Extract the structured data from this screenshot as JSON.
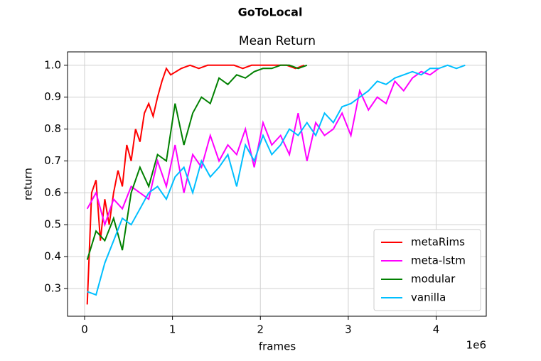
{
  "chart_data": {
    "type": "line",
    "title": "GoToLocal",
    "subtitle": "Mean Return",
    "x_label": "frames",
    "y_label": "return",
    "x_offset_label": "1e6",
    "xlim": [
      -0.194,
      4.57
    ],
    "ylim": [
      0.213,
      1.042
    ],
    "xticks": [
      0,
      1,
      2,
      3,
      4
    ],
    "yticks": [
      {
        "value": 0.3,
        "label": "0.3"
      },
      {
        "value": 0.4,
        "label": "0.4"
      },
      {
        "value": 0.5,
        "label": "0.5"
      },
      {
        "value": 0.6,
        "label": "0.6"
      },
      {
        "value": 0.7,
        "label": "0.7"
      },
      {
        "value": 0.8,
        "label": "0.8"
      },
      {
        "value": 0.9,
        "label": "0.9"
      },
      {
        "value": 1.0,
        "label": "1.0"
      }
    ],
    "grid": true,
    "legend": "lower right",
    "series": [
      {
        "name": "metaRims",
        "color": "#ff0000",
        "x": [
          0.03,
          0.08,
          0.13,
          0.18,
          0.23,
          0.28,
          0.33,
          0.38,
          0.43,
          0.48,
          0.53,
          0.58,
          0.63,
          0.68,
          0.73,
          0.78,
          0.83,
          0.88,
          0.93,
          0.98,
          1.1,
          1.2,
          1.3,
          1.4,
          1.5,
          1.6,
          1.7,
          1.8,
          1.9,
          2.0,
          2.1,
          2.2,
          2.3,
          2.4,
          2.5
        ],
        "values": [
          0.25,
          0.6,
          0.64,
          0.45,
          0.58,
          0.5,
          0.6,
          0.67,
          0.62,
          0.75,
          0.7,
          0.8,
          0.76,
          0.85,
          0.88,
          0.84,
          0.9,
          0.95,
          0.99,
          0.97,
          0.99,
          1,
          0.99,
          1,
          1,
          1,
          1,
          0.99,
          1,
          1,
          1,
          1,
          1,
          0.99,
          1
        ]
      },
      {
        "name": "meta-lstm",
        "color": "#ff00ff",
        "x": [
          0.03,
          0.13,
          0.23,
          0.33,
          0.43,
          0.53,
          0.63,
          0.73,
          0.83,
          0.93,
          1.03,
          1.13,
          1.23,
          1.33,
          1.43,
          1.53,
          1.63,
          1.73,
          1.83,
          1.93,
          2.03,
          2.13,
          2.23,
          2.33,
          2.43,
          2.53,
          2.63,
          2.73,
          2.83,
          2.93,
          3.03,
          3.13,
          3.23,
          3.33,
          3.43,
          3.53,
          3.63,
          3.73,
          3.83,
          3.93,
          4.03
        ],
        "values": [
          0.55,
          0.6,
          0.5,
          0.58,
          0.55,
          0.62,
          0.6,
          0.58,
          0.7,
          0.62,
          0.75,
          0.6,
          0.72,
          0.68,
          0.78,
          0.7,
          0.75,
          0.72,
          0.8,
          0.68,
          0.82,
          0.75,
          0.78,
          0.72,
          0.85,
          0.7,
          0.82,
          0.78,
          0.8,
          0.85,
          0.78,
          0.92,
          0.86,
          0.9,
          0.88,
          0.95,
          0.92,
          0.96,
          0.98,
          0.97,
          0.99
        ]
      },
      {
        "name": "modular",
        "color": "#008000",
        "x": [
          0.03,
          0.13,
          0.23,
          0.33,
          0.43,
          0.53,
          0.63,
          0.73,
          0.83,
          0.93,
          1.03,
          1.13,
          1.23,
          1.33,
          1.43,
          1.53,
          1.63,
          1.73,
          1.83,
          1.93,
          2.03,
          2.13,
          2.23,
          2.33,
          2.43,
          2.53
        ],
        "values": [
          0.39,
          0.48,
          0.45,
          0.52,
          0.42,
          0.6,
          0.68,
          0.62,
          0.72,
          0.7,
          0.88,
          0.75,
          0.85,
          0.9,
          0.88,
          0.96,
          0.94,
          0.97,
          0.96,
          0.98,
          0.99,
          0.99,
          1,
          1,
          0.99,
          1.0
        ]
      },
      {
        "name": "vanilla",
        "color": "#00bfff",
        "x": [
          0.03,
          0.13,
          0.23,
          0.33,
          0.43,
          0.53,
          0.63,
          0.73,
          0.83,
          0.93,
          1.03,
          1.13,
          1.23,
          1.33,
          1.43,
          1.53,
          1.63,
          1.73,
          1.83,
          1.93,
          2.03,
          2.13,
          2.23,
          2.33,
          2.43,
          2.53,
          2.63,
          2.73,
          2.83,
          2.93,
          3.03,
          3.13,
          3.23,
          3.33,
          3.43,
          3.53,
          3.63,
          3.73,
          3.83,
          3.93,
          4.03,
          4.13,
          4.23,
          4.33
        ],
        "values": [
          0.29,
          0.28,
          0.38,
          0.45,
          0.52,
          0.5,
          0.55,
          0.6,
          0.62,
          0.58,
          0.65,
          0.68,
          0.6,
          0.7,
          0.65,
          0.68,
          0.72,
          0.62,
          0.75,
          0.7,
          0.78,
          0.72,
          0.75,
          0.8,
          0.78,
          0.82,
          0.78,
          0.85,
          0.82,
          0.87,
          0.88,
          0.9,
          0.92,
          0.95,
          0.94,
          0.96,
          0.97,
          0.98,
          0.97,
          0.99,
          0.99,
          1.0,
          0.99,
          1.0
        ]
      }
    ]
  }
}
